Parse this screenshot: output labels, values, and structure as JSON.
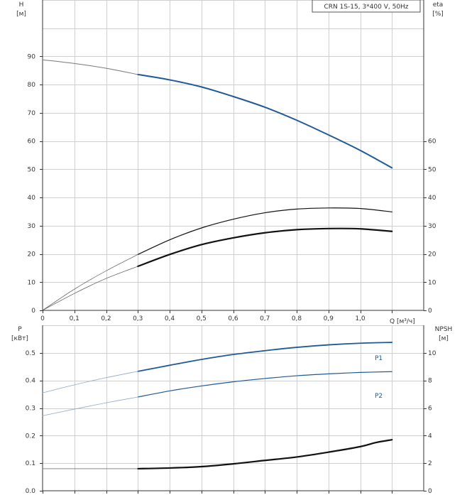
{
  "colors": {
    "blue": "#1f5a96",
    "black": "#111111",
    "grid": "#cfcfcf"
  },
  "chart_data": [
    {
      "type": "line",
      "title": "CRN 1S-15, 3*400 V, 50Hz",
      "xlabel": "Q [м³/ч]",
      "ylabel": "H",
      "ylabel_unit": "[м]",
      "y2label": "eta",
      "y2label_unit": "[%]",
      "xlim": [
        0,
        1.2
      ],
      "ylim": [
        0,
        110
      ],
      "y2lim": [
        0,
        110
      ],
      "x_ticks": [
        "0",
        "0,1",
        "0,2",
        "0,3",
        "0,4",
        "0,5",
        "0,6",
        "0,7",
        "0,8",
        "0,9",
        "1,0"
      ],
      "y_ticks": [
        "0",
        "10",
        "20",
        "30",
        "40",
        "50",
        "60",
        "70",
        "80",
        "90"
      ],
      "y2_ticks": [
        "0",
        "10",
        "20",
        "30",
        "40",
        "50",
        "60"
      ],
      "grid": true,
      "series": [
        {
          "axis": "left",
          "color": "#1f5a96",
          "width": 2,
          "x": [
            0.3,
            0.4,
            0.5,
            0.6,
            0.7,
            0.8,
            0.9,
            1.0,
            1.1
          ],
          "y": [
            83.6,
            81.7,
            79.2,
            75.8,
            72.0,
            67.4,
            62.2,
            56.7,
            50.5
          ]
        },
        {
          "axis": "left",
          "color": "#777777",
          "width": 1,
          "x": [
            0,
            0.1,
            0.2,
            0.3
          ],
          "y": [
            88.8,
            87.5,
            85.8,
            83.6
          ]
        },
        {
          "axis": "right",
          "color": "#111111",
          "width": 1.2,
          "x": [
            0.3,
            0.4,
            0.5,
            0.6,
            0.7,
            0.8,
            0.9,
            1.0,
            1.1
          ],
          "y": [
            19.8,
            25.0,
            29.2,
            32.3,
            34.6,
            35.9,
            36.3,
            36.1,
            34.9
          ]
        },
        {
          "axis": "right",
          "color": "#555555",
          "width": 0.7,
          "x": [
            0,
            0.1,
            0.2,
            0.3
          ],
          "y": [
            0,
            7.5,
            14.0,
            19.8
          ]
        },
        {
          "axis": "left",
          "color": "#111111",
          "width": 2.2,
          "x": [
            0.3,
            0.4,
            0.5,
            0.6,
            0.7,
            0.8,
            0.9,
            1.0,
            1.1
          ],
          "y": [
            15.6,
            19.8,
            23.3,
            25.7,
            27.5,
            28.6,
            29.0,
            28.9,
            28.0
          ]
        },
        {
          "axis": "left",
          "color": "#555555",
          "width": 0.7,
          "x": [
            0,
            0.1,
            0.2,
            0.3
          ],
          "y": [
            0,
            6.0,
            11.3,
            15.6
          ]
        }
      ]
    },
    {
      "type": "line",
      "ylabel": "P",
      "ylabel_unit": "[кВт]",
      "y2label": "NPSH",
      "y2label_unit": "[м]",
      "xlim": [
        0,
        1.2
      ],
      "ylim": [
        0,
        0.6
      ],
      "y2lim": [
        0,
        12
      ],
      "y_ticks": [
        "0.0",
        "0.1",
        "0.2",
        "0.3",
        "0.4",
        "0.5"
      ],
      "y2_ticks": [
        "0",
        "2",
        "4",
        "6",
        "8",
        "10"
      ],
      "grid": true,
      "series": [
        {
          "name": "P1",
          "axis": "left",
          "color": "#1f5a96",
          "width": 1.8,
          "x": [
            0.3,
            0.4,
            0.5,
            0.6,
            0.7,
            0.8,
            0.9,
            1.0,
            1.1
          ],
          "y": [
            0.433,
            0.455,
            0.476,
            0.494,
            0.508,
            0.52,
            0.529,
            0.535,
            0.538
          ]
        },
        {
          "axis": "left",
          "color": "#8aa9c8",
          "width": 0.8,
          "x": [
            0,
            0.1,
            0.2,
            0.3
          ],
          "y": [
            0.355,
            0.384,
            0.41,
            0.433
          ]
        },
        {
          "name": "P2",
          "axis": "left",
          "color": "#1f5a96",
          "width": 1.2,
          "x": [
            0.3,
            0.4,
            0.5,
            0.6,
            0.7,
            0.8,
            0.9,
            1.0,
            1.1
          ],
          "y": [
            0.34,
            0.362,
            0.38,
            0.395,
            0.407,
            0.417,
            0.424,
            0.429,
            0.432
          ]
        },
        {
          "axis": "left",
          "color": "#8aa9c8",
          "width": 0.8,
          "x": [
            0,
            0.1,
            0.2,
            0.3
          ],
          "y": [
            0.272,
            0.296,
            0.319,
            0.34
          ]
        },
        {
          "axis": "right",
          "color": "#111111",
          "width": 2.2,
          "x": [
            0.3,
            0.4,
            0.5,
            0.6,
            0.7,
            0.8,
            0.9,
            1.0,
            1.05,
            1.1
          ],
          "y": [
            1.6,
            1.65,
            1.75,
            1.95,
            2.2,
            2.45,
            2.8,
            3.2,
            3.5,
            3.7
          ]
        },
        {
          "axis": "right",
          "color": "#777777",
          "width": 0.8,
          "x": [
            0,
            0.3
          ],
          "y": [
            1.6,
            1.6
          ]
        }
      ]
    }
  ]
}
